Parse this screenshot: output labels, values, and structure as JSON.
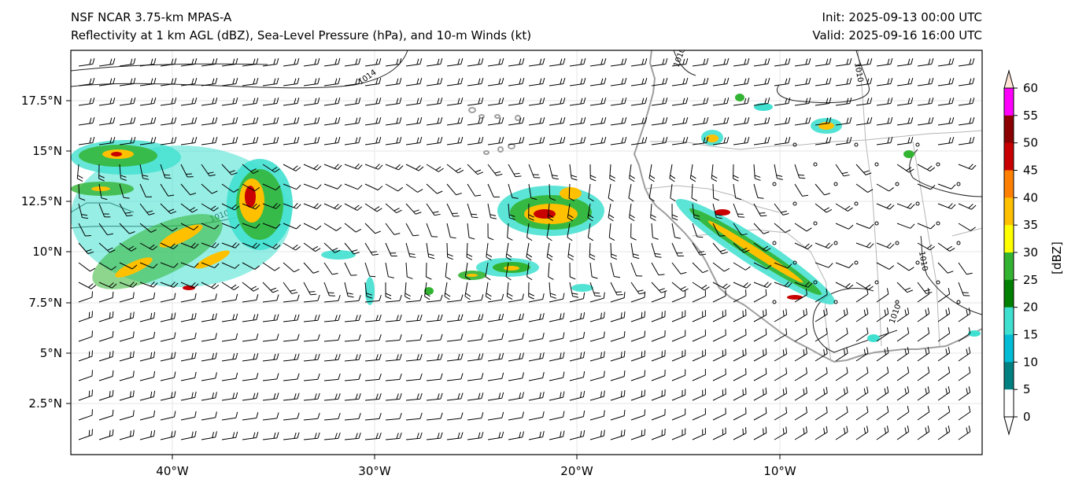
{
  "header": {
    "model": "NSF NCAR 3.75-km MPAS-A",
    "fields": "Reflectivity at 1 km AGL (dBZ), Sea-Level Pressure (hPa), and 10-m Winds (kt)",
    "init": "Init: 2025-09-13 00:00 UTC",
    "valid": "Valid: 2025-09-16 16:00 UTC"
  },
  "axes": {
    "lat_labels": [
      "17.5°N",
      "15°N",
      "12.5°N",
      "10°N",
      "7.5°N",
      "5°N",
      "2.5°N"
    ],
    "lon_labels": [
      "40°W",
      "30°W",
      "20°W",
      "10°W"
    ]
  },
  "isobars": {
    "labels": [
      "1014",
      "1010",
      "1010",
      "1010",
      "1010",
      "1010"
    ]
  },
  "colorbar": {
    "unit": "[dBZ]",
    "ticks": [
      "60",
      "55",
      "50",
      "45",
      "40",
      "35",
      "30",
      "25",
      "20",
      "15",
      "10",
      "5",
      "0"
    ],
    "colors": [
      "#ffe4d6",
      "#ff00ff",
      "#8b0000",
      "#c80000",
      "#ff8000",
      "#ffc000",
      "#ffff00",
      "#32b432",
      "#008000",
      "#40e0d0",
      "#00bcd4",
      "#008080",
      "#ffffff"
    ]
  }
}
